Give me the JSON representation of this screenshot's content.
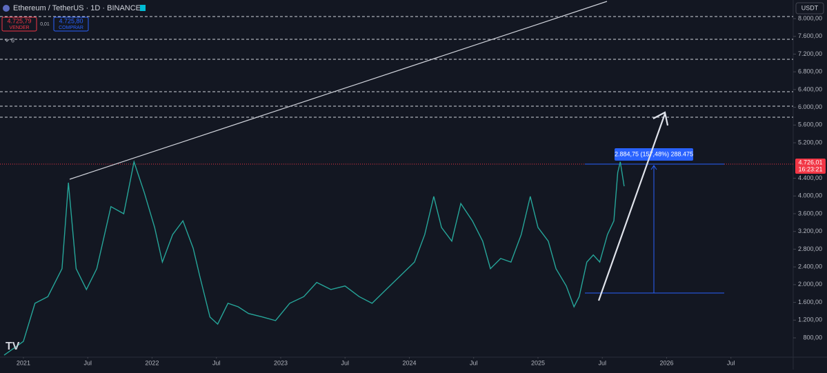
{
  "chart_data": {
    "type": "line",
    "title": "Ethereum / TetherUS · 1D · BINANCE",
    "currency": "USDT",
    "sell_price": "4.725,79",
    "sell_label": "VENDER",
    "spread": "0,01",
    "buy_price": "4.725,80",
    "buy_label": "COMPRAR",
    "indicator_count": "6",
    "last_price": "4.726,01",
    "countdown": "16:23:21",
    "measure_label": "2.884,75 (157,48%) 288.475",
    "x": [
      2020.85,
      2021.0,
      2021.09,
      2021.19,
      2021.3,
      2021.35,
      2021.41,
      2021.49,
      2021.57,
      2021.68,
      2021.78,
      2021.86,
      2021.94,
      2022.02,
      2022.08,
      2022.16,
      2022.24,
      2022.32,
      2022.37,
      2022.45,
      2022.51,
      2022.59,
      2022.67,
      2022.75,
      2022.86,
      2022.96,
      2023.07,
      2023.18,
      2023.28,
      2023.39,
      2023.5,
      2023.61,
      2023.71,
      2023.82,
      2023.93,
      2024.04,
      2024.12,
      2024.19,
      2024.25,
      2024.33,
      2024.4,
      2024.49,
      2024.57,
      2024.63,
      2024.71,
      2024.79,
      2024.87,
      2024.94,
      2025.0,
      2025.08,
      2025.14,
      2025.22,
      2025.28,
      2025.32,
      2025.38,
      2025.43,
      2025.48,
      2025.54,
      2025.59,
      2025.62,
      2025.64,
      2025.67
    ],
    "series": [
      {
        "name": "ETHUSDT",
        "color": "#26a69a",
        "values": [
          410,
          720,
          1580,
          1730,
          2360,
          4300,
          2360,
          1890,
          2360,
          3760,
          3600,
          4770,
          4070,
          3290,
          2510,
          3130,
          3440,
          2820,
          2200,
          1270,
          1110,
          1580,
          1500,
          1350,
          1270,
          1190,
          1580,
          1730,
          2050,
          1890,
          1970,
          1730,
          1580,
          1890,
          2200,
          2510,
          3130,
          3990,
          3290,
          2980,
          3830,
          3440,
          2980,
          2360,
          2590,
          2510,
          3130,
          3990,
          3290,
          2980,
          2360,
          1970,
          1500,
          1730,
          2510,
          2670,
          2510,
          3130,
          3440,
          4530,
          4770,
          4220
        ]
      }
    ],
    "xlim": [
      2020.818,
      2026.984
    ],
    "xticks": [
      {
        "value": 2021,
        "label": "2021"
      },
      {
        "value": 2021.5,
        "label": "Jul"
      },
      {
        "value": 2022,
        "label": "2022"
      },
      {
        "value": 2022.5,
        "label": "Jul"
      },
      {
        "value": 2023,
        "label": "2023"
      },
      {
        "value": 2023.5,
        "label": "Jul"
      },
      {
        "value": 2024,
        "label": "2024"
      },
      {
        "value": 2024.5,
        "label": "Jul"
      },
      {
        "value": 2025,
        "label": "2025"
      },
      {
        "value": 2025.5,
        "label": "Jul"
      },
      {
        "value": 2026,
        "label": "2026"
      },
      {
        "value": 2026.5,
        "label": "Jul"
      }
    ],
    "ylim": [
      334,
      8420
    ],
    "yticks": [
      {
        "value": 800,
        "label": "800,00"
      },
      {
        "value": 1200,
        "label": "1.200,00"
      },
      {
        "value": 1600,
        "label": "1.600,00"
      },
      {
        "value": 2000,
        "label": "2.000,00"
      },
      {
        "value": 2400,
        "label": "2.400,00"
      },
      {
        "value": 2800,
        "label": "2.800,00"
      },
      {
        "value": 3200,
        "label": "3.200,00"
      },
      {
        "value": 3600,
        "label": "3.600,00"
      },
      {
        "value": 4000,
        "label": "4.000,00"
      },
      {
        "value": 4400,
        "label": "4.400,00"
      },
      {
        "value": 5200,
        "label": "5.200,00"
      },
      {
        "value": 5600,
        "label": "5.600,00"
      },
      {
        "value": 6000,
        "label": "6.000,00"
      },
      {
        "value": 6400,
        "label": "6.400,00"
      },
      {
        "value": 6800,
        "label": "6.800,00"
      },
      {
        "value": 7200,
        "label": "7.200,00"
      },
      {
        "value": 7600,
        "label": "7.600,00"
      },
      {
        "value": 8000,
        "label": "8.000,00"
      }
    ],
    "grid": false
  }
}
